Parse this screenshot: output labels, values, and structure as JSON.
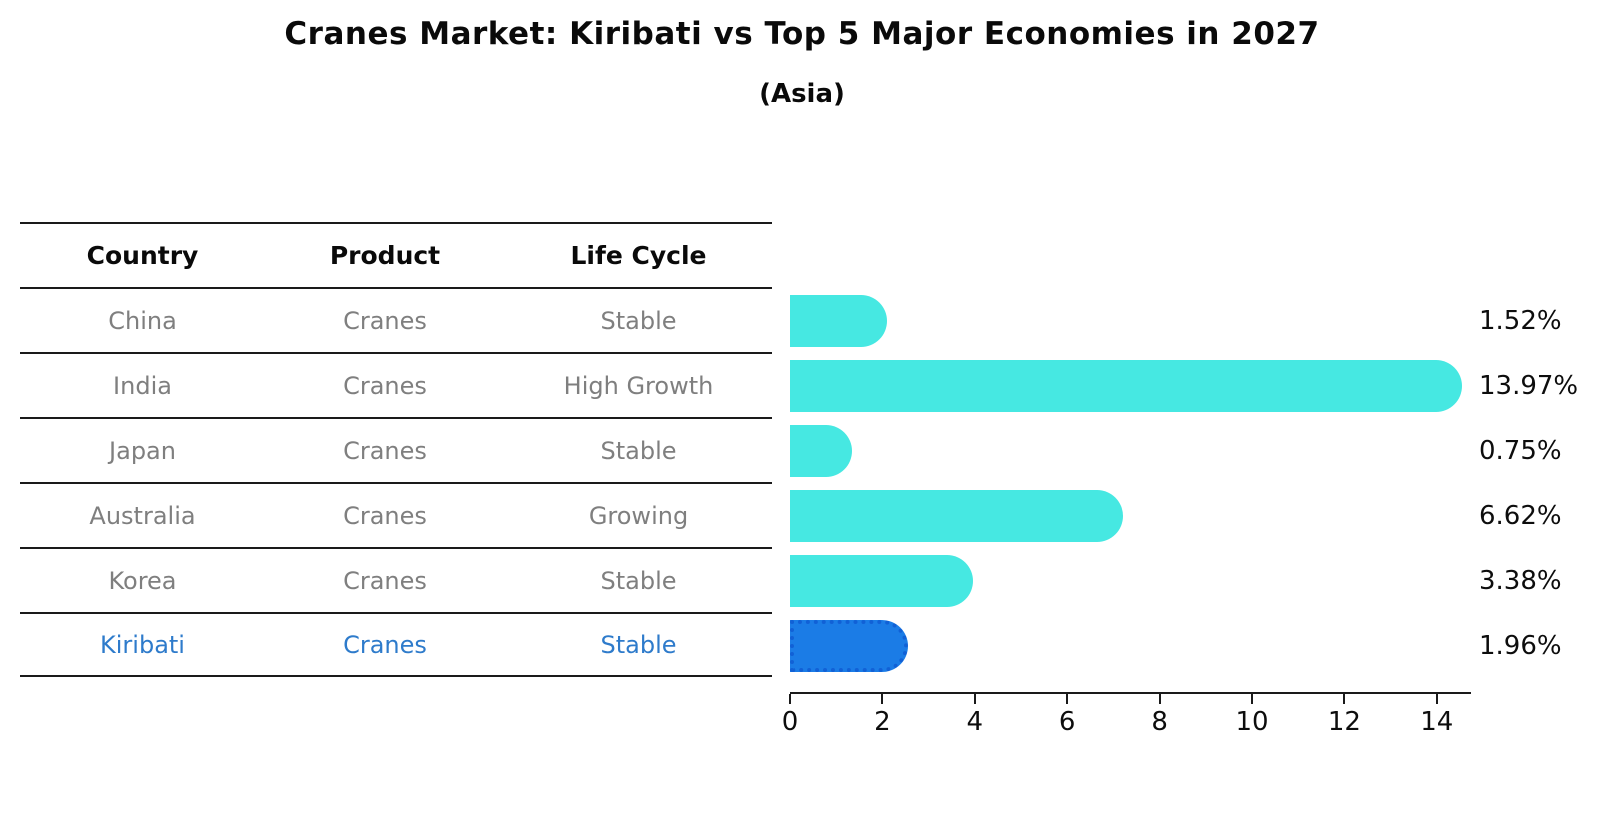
{
  "title": "Cranes Market: Kiribati vs Top 5 Major Economies in 2027",
  "subtitle": "(Asia)",
  "table": {
    "headers": [
      "Country",
      "Product",
      "Life Cycle"
    ],
    "rows": [
      {
        "country": "China",
        "product": "Cranes",
        "life_cycle": "Stable",
        "highlight": false
      },
      {
        "country": "India",
        "product": "Cranes",
        "life_cycle": "High Growth",
        "highlight": false
      },
      {
        "country": "Japan",
        "product": "Cranes",
        "life_cycle": "Stable",
        "highlight": false
      },
      {
        "country": "Australia",
        "product": "Cranes",
        "life_cycle": "Growing",
        "highlight": false
      },
      {
        "country": "Korea",
        "product": "Cranes",
        "life_cycle": "Stable",
        "highlight": false
      },
      {
        "country": "Kiribati",
        "product": "Cranes",
        "life_cycle": "Stable",
        "highlight": true
      }
    ]
  },
  "chart_data": {
    "type": "bar",
    "orientation": "horizontal",
    "title": "Cranes Market: Kiribati vs Top 5 Major Economies in 2027",
    "subtitle": "(Asia)",
    "categories": [
      "China",
      "India",
      "Japan",
      "Australia",
      "Korea",
      "Kiribati"
    ],
    "values": [
      1.52,
      13.97,
      0.75,
      6.62,
      3.38,
      1.96
    ],
    "value_labels": [
      "1.52%",
      "13.97%",
      "0.75%",
      "6.62%",
      "3.38%",
      "1.96%"
    ],
    "x_ticks": [
      0,
      2,
      4,
      6,
      8,
      10,
      12,
      14
    ],
    "xlim": [
      0,
      14.7
    ],
    "grid": false,
    "legend": "none",
    "bar_color": "#46e8e2",
    "highlight_color": "#1b7ce6",
    "highlight_index": 5,
    "highlight_category": "Kiribati"
  },
  "colors": {
    "bar_cyan": "#46e8e2",
    "bar_blue": "#1b7ce6",
    "highlight_text_blue": "#2e7bcb",
    "table_text_gray": "#7f7f7f",
    "line_black": "#1a1a1a"
  }
}
